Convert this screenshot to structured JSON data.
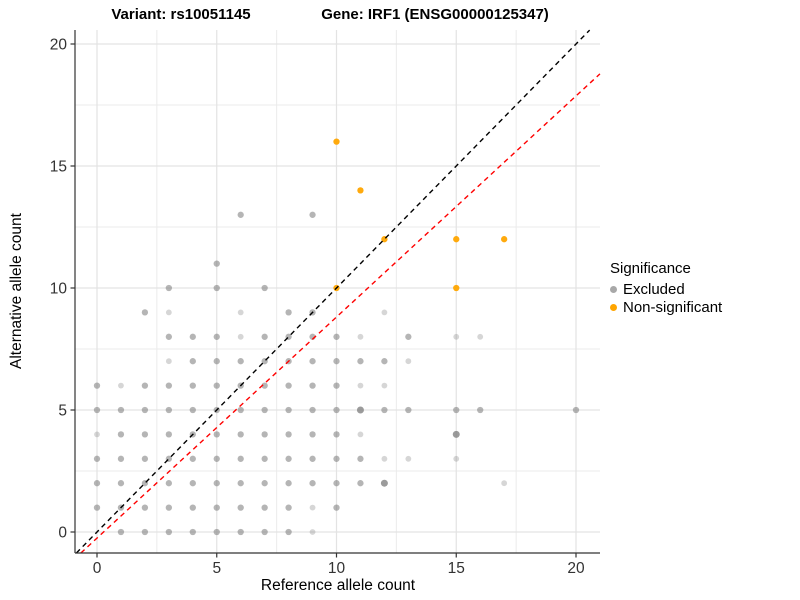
{
  "titles": {
    "variant": "Variant: rs10051145",
    "gene": "Gene: IRF1 (ENSG00000125347)"
  },
  "chart_data": {
    "type": "scatter",
    "xlabel": "Reference allele count",
    "ylabel": "Alternative allele count",
    "x_ticks": [
      0,
      5,
      10,
      15,
      20
    ],
    "y_ticks": [
      0,
      5,
      10,
      15,
      20
    ],
    "x_minor_ticks": [
      2.5,
      7.5,
      12.5,
      17.5
    ],
    "y_minor_ticks": [
      2.5,
      7.5,
      12.5,
      17.5
    ],
    "xlim": [
      -0.92,
      21.0
    ],
    "ylim": [
      -0.86,
      20.57
    ],
    "grid": true,
    "colors": {
      "excluded": "#7F7F7F",
      "non_significant": "#FFA500",
      "identity_line": "#000000",
      "fit_line": "#FF0000",
      "grid_major": "#E3E3E3",
      "grid_minor": "#EBEBEB",
      "axis": "#333333",
      "tick_label": "#333333"
    },
    "legend": {
      "title": "Significance",
      "position": "right",
      "entries": [
        {
          "label": "Excluded",
          "color": "#A8A8A8"
        },
        {
          "label": "Non-significant",
          "color": "#FFA500"
        }
      ]
    },
    "lines": [
      {
        "name": "identity",
        "slope": 1.0,
        "intercept": 0.0,
        "color": "#000000",
        "dashed": true
      },
      {
        "name": "fit",
        "slope": 0.906,
        "intercept": -0.25,
        "color": "#FF0000",
        "dashed": true
      }
    ],
    "series": [
      {
        "name": "Excluded",
        "color": "#7F7F7F",
        "points": [
          [
            1,
            0
          ],
          [
            2,
            0
          ],
          [
            3,
            0
          ],
          [
            4,
            0
          ],
          [
            5,
            0
          ],
          [
            6,
            0
          ],
          [
            7,
            0
          ],
          [
            8,
            0
          ],
          [
            9,
            0,
            "l"
          ],
          [
            0,
            1
          ],
          [
            1,
            1
          ],
          [
            2,
            1
          ],
          [
            3,
            1
          ],
          [
            4,
            1
          ],
          [
            5,
            1
          ],
          [
            6,
            1
          ],
          [
            7,
            1
          ],
          [
            8,
            1
          ],
          [
            9,
            1,
            "l"
          ],
          [
            10,
            1
          ],
          [
            0,
            2
          ],
          [
            1,
            2
          ],
          [
            2,
            2
          ],
          [
            3,
            2
          ],
          [
            4,
            2
          ],
          [
            5,
            2
          ],
          [
            6,
            2
          ],
          [
            7,
            2
          ],
          [
            8,
            2
          ],
          [
            9,
            2
          ],
          [
            10,
            2
          ],
          [
            11,
            2
          ],
          [
            12,
            2,
            "d"
          ],
          [
            17,
            2,
            "l"
          ],
          [
            0,
            3
          ],
          [
            1,
            3
          ],
          [
            2,
            3
          ],
          [
            3,
            3
          ],
          [
            4,
            3
          ],
          [
            5,
            3
          ],
          [
            6,
            3
          ],
          [
            7,
            3
          ],
          [
            8,
            3
          ],
          [
            9,
            3
          ],
          [
            10,
            3
          ],
          [
            11,
            3
          ],
          [
            12,
            3,
            "l"
          ],
          [
            13,
            3,
            "l"
          ],
          [
            15,
            3,
            "l"
          ],
          [
            0,
            4,
            "l"
          ],
          [
            1,
            4
          ],
          [
            2,
            4
          ],
          [
            3,
            4
          ],
          [
            4,
            4
          ],
          [
            5,
            4
          ],
          [
            6,
            4
          ],
          [
            7,
            4
          ],
          [
            8,
            4
          ],
          [
            9,
            4
          ],
          [
            10,
            4
          ],
          [
            11,
            4,
            "l"
          ],
          [
            15,
            4,
            "d"
          ],
          [
            0,
            5
          ],
          [
            1,
            5
          ],
          [
            2,
            5
          ],
          [
            3,
            5
          ],
          [
            4,
            5
          ],
          [
            5,
            5
          ],
          [
            6,
            5
          ],
          [
            7,
            5
          ],
          [
            8,
            5
          ],
          [
            9,
            5
          ],
          [
            10,
            5
          ],
          [
            11,
            5,
            "d"
          ],
          [
            12,
            5
          ],
          [
            13,
            5
          ],
          [
            15,
            5
          ],
          [
            16,
            5
          ],
          [
            20,
            5
          ],
          [
            0,
            6
          ],
          [
            1,
            6,
            "l"
          ],
          [
            2,
            6
          ],
          [
            3,
            6
          ],
          [
            4,
            6
          ],
          [
            5,
            6
          ],
          [
            6,
            6
          ],
          [
            7,
            6
          ],
          [
            8,
            6
          ],
          [
            9,
            6
          ],
          [
            10,
            6
          ],
          [
            11,
            6,
            "l"
          ],
          [
            12,
            6,
            "l"
          ],
          [
            3,
            7,
            "l"
          ],
          [
            4,
            7
          ],
          [
            5,
            7
          ],
          [
            6,
            7
          ],
          [
            7,
            7
          ],
          [
            8,
            7
          ],
          [
            9,
            7
          ],
          [
            10,
            7
          ],
          [
            11,
            7
          ],
          [
            12,
            7
          ],
          [
            13,
            7,
            "l"
          ],
          [
            3,
            8
          ],
          [
            4,
            8
          ],
          [
            5,
            8
          ],
          [
            6,
            8,
            "l"
          ],
          [
            7,
            8
          ],
          [
            8,
            8
          ],
          [
            9,
            8
          ],
          [
            10,
            8
          ],
          [
            11,
            8,
            "l"
          ],
          [
            13,
            8
          ],
          [
            15,
            8,
            "l"
          ],
          [
            16,
            8,
            "l"
          ],
          [
            2,
            9
          ],
          [
            3,
            9,
            "l"
          ],
          [
            6,
            9,
            "l"
          ],
          [
            8,
            9
          ],
          [
            9,
            9
          ],
          [
            12,
            9,
            "l"
          ],
          [
            3,
            10
          ],
          [
            5,
            10
          ],
          [
            7,
            10
          ],
          [
            5,
            11
          ],
          [
            6,
            13
          ],
          [
            9,
            13
          ]
        ]
      },
      {
        "name": "Non-significant",
        "color": "#FFA500",
        "points": [
          [
            10,
            10
          ],
          [
            10,
            16
          ],
          [
            11,
            14
          ],
          [
            12,
            12
          ],
          [
            15,
            10
          ],
          [
            15,
            12
          ],
          [
            17,
            12
          ]
        ]
      }
    ]
  }
}
